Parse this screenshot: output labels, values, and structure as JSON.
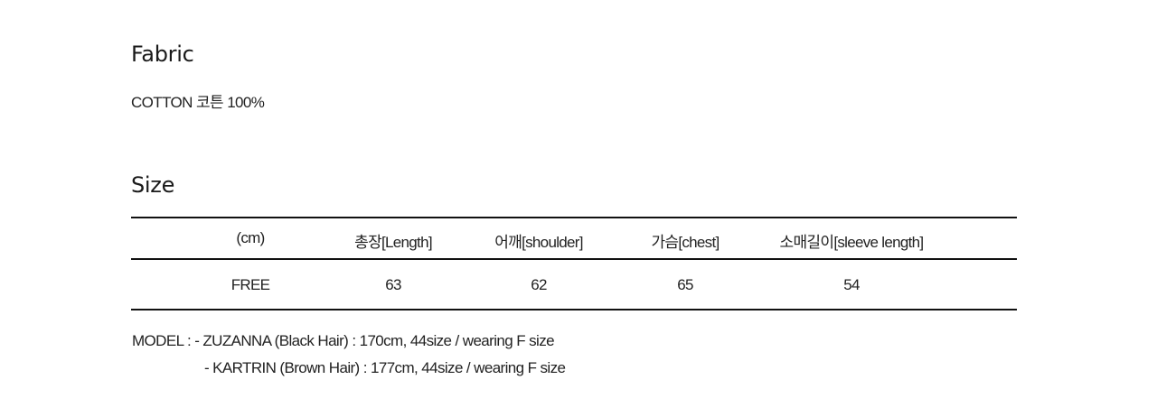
{
  "fabric": {
    "title": "Fabric",
    "text": "COTTON 코튼 100%"
  },
  "size": {
    "title": "Size",
    "headers": [
      "(cm)",
      "총장[Length]",
      "어깨[shoulder]",
      "가슴[chest]",
      "소매길이[sleeve length]"
    ],
    "rows": [
      [
        "FREE",
        "63",
        "62",
        "65",
        "54"
      ]
    ]
  },
  "model": {
    "line1": "MODEL : - ZUZANNA (Black Hair) : 170cm, 44size / wearing F size",
    "line2": "- KARTRIN (Brown Hair) : 177cm, 44size / wearing F size"
  }
}
